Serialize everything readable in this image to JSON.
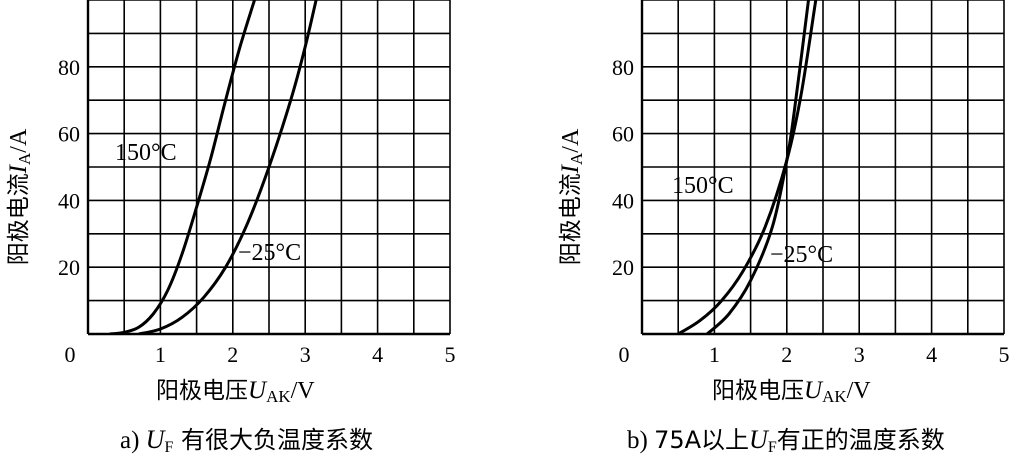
{
  "chart_data": [
    {
      "type": "line",
      "caption_prefix": "a) ",
      "caption_symbol": "U",
      "caption_sub": "F",
      "caption_rest": " 有很大负温度系数",
      "xlabel_prefix": "阳极电压",
      "xlabel_symbol": "U",
      "xlabel_sub": "AK",
      "xlabel_suffix": "/V",
      "ylabel_prefix": "阳极电流",
      "ylabel_symbol": "I",
      "ylabel_sub": "A",
      "ylabel_suffix": "/A",
      "xlim": [
        0,
        5
      ],
      "ylim": [
        0,
        100
      ],
      "x_ticks": [
        "0",
        "1",
        "2",
        "3",
        "4",
        "5"
      ],
      "y_ticks": [
        "20",
        "40",
        "60",
        "80"
      ],
      "grid": true,
      "series": [
        {
          "name": "150°C",
          "points": [
            [
              0.3,
              0
            ],
            [
              0.5,
              0.5
            ],
            [
              0.7,
              2
            ],
            [
              0.9,
              6
            ],
            [
              1.1,
              13
            ],
            [
              1.3,
              24
            ],
            [
              1.5,
              38
            ],
            [
              1.7,
              53
            ],
            [
              1.9,
              70
            ],
            [
              2.1,
              86
            ],
            [
              2.3,
              100
            ]
          ]
        },
        {
          "name": "−25°C",
          "points": [
            [
              0.7,
              0
            ],
            [
              1.0,
              1.5
            ],
            [
              1.3,
              5
            ],
            [
              1.6,
              11
            ],
            [
              1.9,
              20
            ],
            [
              2.2,
              33
            ],
            [
              2.5,
              50
            ],
            [
              2.8,
              70
            ],
            [
              3.0,
              86
            ],
            [
              3.15,
              100
            ]
          ]
        }
      ]
    },
    {
      "type": "line",
      "caption_prefix": "b) ",
      "caption_middle": "75A以上",
      "caption_symbol": "U",
      "caption_sub": "F",
      "caption_rest": "有正的温度系数",
      "xlabel_prefix": "阳极电压",
      "xlabel_symbol": "U",
      "xlabel_sub": "AK",
      "xlabel_suffix": "/V",
      "ylabel_prefix": "阳极电流",
      "ylabel_symbol": "I",
      "ylabel_sub": "A",
      "ylabel_suffix": "/A",
      "xlim": [
        0,
        5
      ],
      "ylim": [
        0,
        100
      ],
      "x_ticks": [
        "0",
        "1",
        "2",
        "3",
        "4",
        "5"
      ],
      "y_ticks": [
        "20",
        "40",
        "60",
        "80"
      ],
      "grid": true,
      "series": [
        {
          "name": "150°C",
          "points": [
            [
              0.5,
              0
            ],
            [
              0.8,
              4
            ],
            [
              1.1,
              10
            ],
            [
              1.4,
              19
            ],
            [
              1.7,
              32
            ],
            [
              2.0,
              52
            ],
            [
              2.2,
              72
            ],
            [
              2.4,
              100
            ]
          ]
        },
        {
          "name": "−25°C",
          "points": [
            [
              0.9,
              0
            ],
            [
              1.2,
              6
            ],
            [
              1.5,
              16
            ],
            [
              1.8,
              32
            ],
            [
              2.0,
              52
            ],
            [
              2.1,
              66
            ],
            [
              2.3,
              100
            ]
          ]
        }
      ]
    }
  ]
}
